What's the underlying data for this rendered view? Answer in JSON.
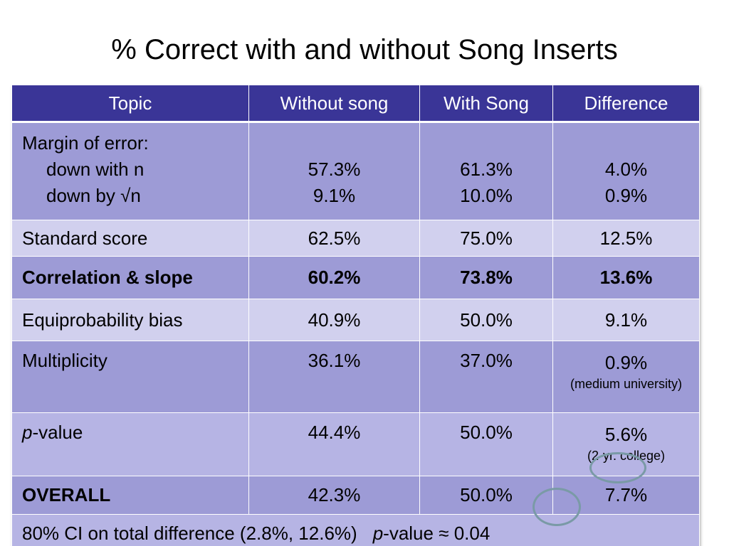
{
  "title": "% Correct with and without Song Inserts",
  "table": {
    "headers": [
      "Topic",
      "Without song",
      "With Song",
      "Difference"
    ],
    "rows": {
      "margin": {
        "topic_line1": "Margin of error:",
        "topic_line2": "down with n",
        "topic_line3": "down by √n",
        "without": [
          "57.3%",
          "9.1%"
        ],
        "with": [
          "61.3%",
          "10.0%"
        ],
        "diff": [
          "4.0%",
          "0.9%"
        ]
      },
      "standard": {
        "topic": "Standard score",
        "without": "62.5%",
        "with": "75.0%",
        "diff": "12.5%"
      },
      "correlation": {
        "topic": "Correlation & slope",
        "without": "60.2%",
        "with": "73.8%",
        "diff": "13.6%"
      },
      "equiprob": {
        "topic": "Equiprobability bias",
        "without": "40.9%",
        "with": "50.0%",
        "diff": "9.1%"
      },
      "multiplicity": {
        "topic": "Multiplicity",
        "without": "36.1%",
        "with": "37.0%",
        "diff": "0.9%",
        "diff_note": "(medium university)"
      },
      "pvalue": {
        "topic_italic": "p",
        "topic_rest": "-value",
        "without": "44.4%",
        "with": "50.0%",
        "diff": "5.6%",
        "diff_note": "(2-yr. college)"
      },
      "overall": {
        "topic": "OVERALL",
        "without": "42.3%",
        "with": "50.0%",
        "diff": "7.7%"
      }
    },
    "footer": {
      "ci_text": "80% CI on total difference (2.8%, 12.6%)",
      "p_italic": "p",
      "p_rest": "-value ≈ 0.04"
    }
  },
  "colors": {
    "header_bg": "#3a3597",
    "row_dark": "#9d9bd6",
    "row_light": "#d1d0ee",
    "row_mid": "#b6b4e4",
    "highlight_ring": "#7a9aa6"
  }
}
